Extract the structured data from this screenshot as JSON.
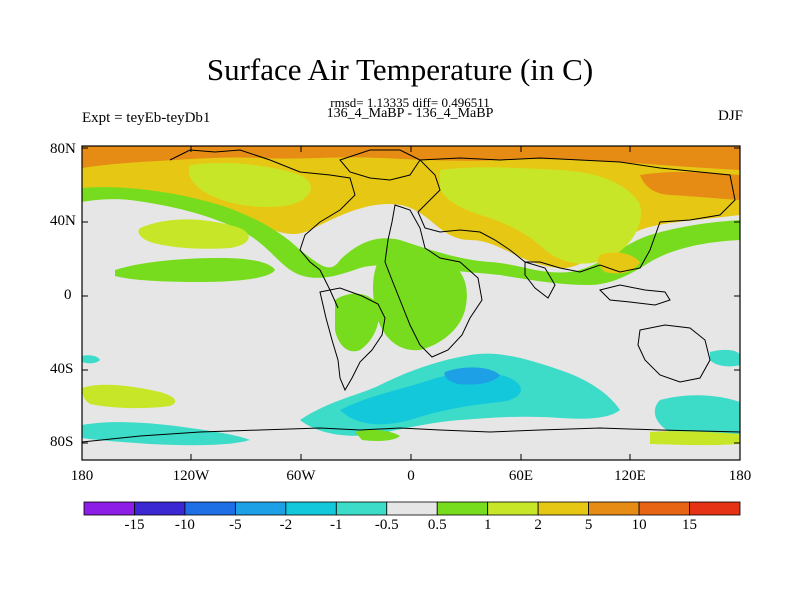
{
  "header": {
    "title": "Surface Air Temperature (in C)",
    "stats": "rmsd= 1.13335 diff= 0.496511",
    "experiment": "Expt = teyEb-teyDb1",
    "periods": "136_4_MaBP - 136_4_MaBP",
    "season": "DJF"
  },
  "axes": {
    "y_ticks": [
      "80N",
      "40N",
      "0",
      "40S",
      "80S"
    ],
    "x_ticks": [
      "180",
      "120W",
      "60W",
      "0",
      "60E",
      "120E",
      "180"
    ]
  },
  "colorbar": {
    "labels": [
      "-15",
      "-10",
      "-5",
      "-2",
      "-1",
      "-0.5",
      "0.5",
      "1",
      "2",
      "5",
      "10",
      "15"
    ],
    "colors": [
      "#8c1ee6",
      "#3c28d2",
      "#1e6ee6",
      "#1ea0e6",
      "#14c8dc",
      "#3cdcc8",
      "#e6e6e6",
      "#78dc1e",
      "#c8e628",
      "#e6c814",
      "#e68c14",
      "#e66414",
      "#e63214"
    ]
  },
  "palette": {
    "neutral": "#e6e6e6",
    "green": "#78dc1e",
    "yellow_green": "#c8e628",
    "yellow": "#e6c814",
    "orange": "#e68c14",
    "cyan": "#14c8dc",
    "light_cyan": "#3cdcc8",
    "blue": "#1ea0e6"
  }
}
